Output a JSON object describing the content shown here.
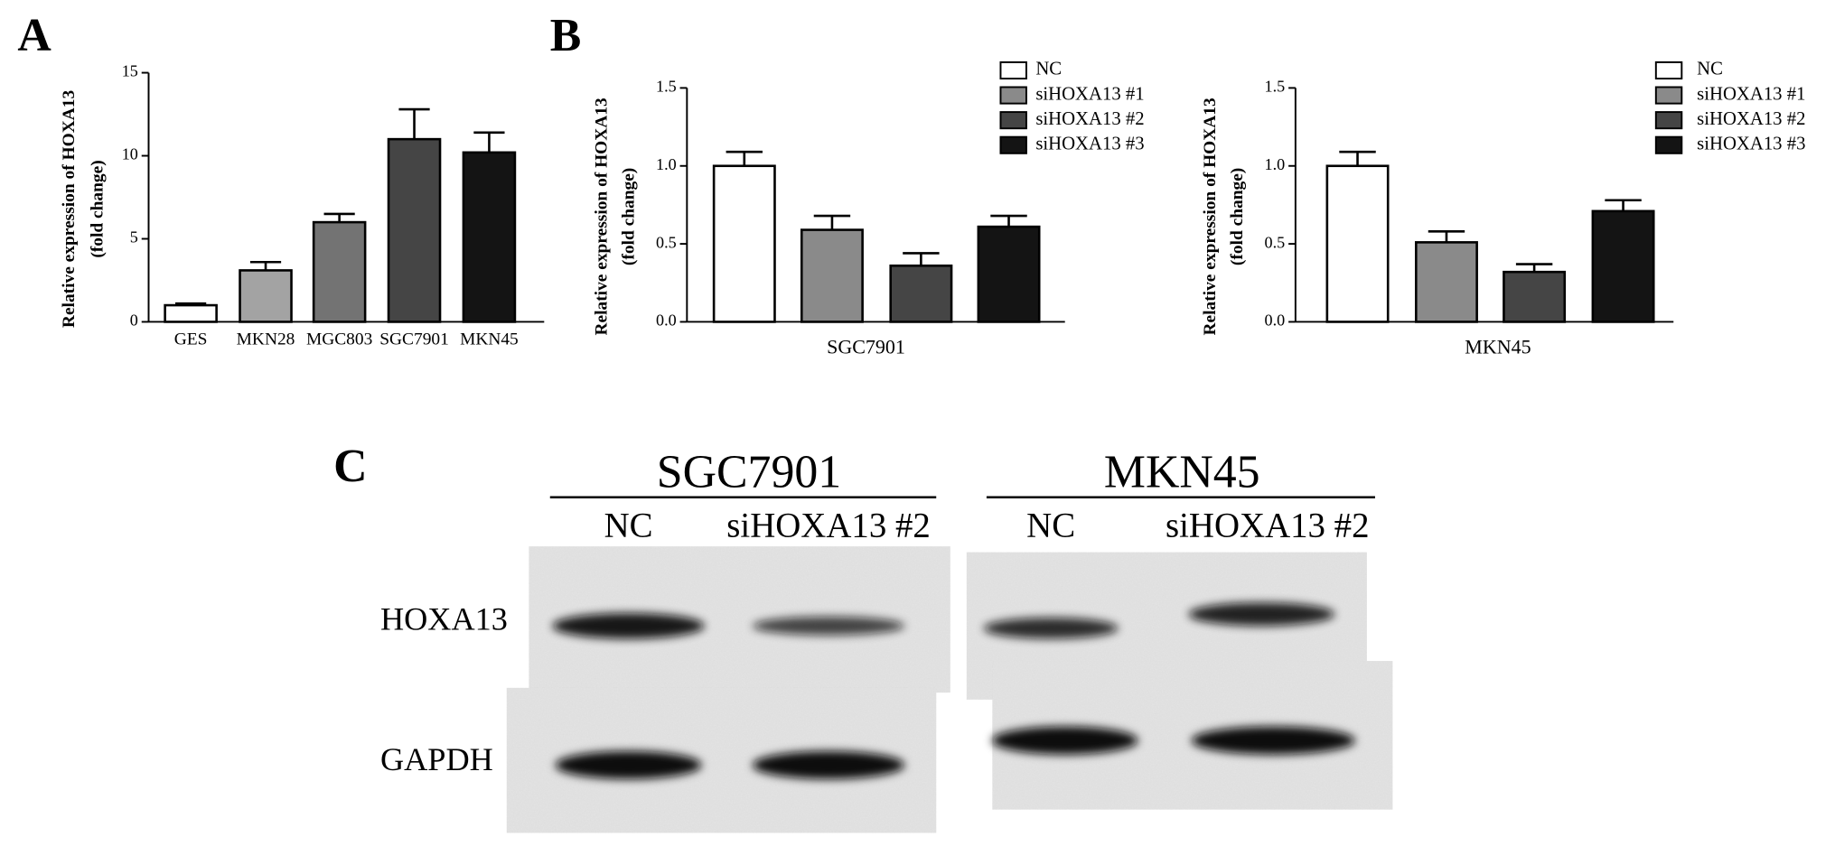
{
  "chart_data": [
    {
      "type": "bar",
      "panel": "A",
      "y_label": [
        "Relative expression of HOXA13",
        "(fold change)"
      ],
      "categories": [
        "GES",
        "MKN28",
        "MGC803",
        "SGC7901",
        "MKN45"
      ],
      "values": [
        1.0,
        3.1,
        6.0,
        11.0,
        10.2
      ],
      "errors": [
        0.1,
        0.5,
        0.5,
        1.8,
        1.2
      ],
      "colors": [
        "#ffffff",
        "#a3a3a3",
        "#737373",
        "#454545",
        "#141414"
      ],
      "ylim": [
        0,
        15
      ],
      "yticks": [
        0,
        5,
        10,
        15
      ]
    },
    {
      "type": "bar",
      "panel": "B",
      "y_label": [
        "Relative expression of HOXA13",
        "(fold change)"
      ],
      "x_label": "SGC7901",
      "series": [
        {
          "name": "NC",
          "color": "#ffffff",
          "values": [
            1.0
          ],
          "errors": [
            0.09
          ]
        },
        {
          "name": "siHOXA13 #1",
          "color": "#8a8a8a",
          "values": [
            0.59
          ],
          "errors": [
            0.09
          ]
        },
        {
          "name": "siHOXA13 #2",
          "color": "#454545",
          "values": [
            0.36
          ],
          "errors": [
            0.08
          ]
        },
        {
          "name": "siHOXA13 #3",
          "color": "#141414",
          "values": [
            0.61
          ],
          "errors": [
            0.07
          ]
        }
      ],
      "ylim": [
        0,
        1.5
      ],
      "yticks": [
        {
          "value": 0,
          "label": "0.0"
        },
        0.5,
        {
          "value": 1,
          "label": "1.0"
        },
        1.5
      ]
    },
    {
      "type": "bar",
      "y_label": [
        "Relative expression of HOXA13",
        "(fold change)"
      ],
      "x_label": "MKN45",
      "series": [
        {
          "name": "NC",
          "color": "#ffffff",
          "values": [
            1.0
          ],
          "errors": [
            0.09
          ]
        },
        {
          "name": "siHOXA13 #1",
          "color": "#8a8a8a",
          "values": [
            0.51
          ],
          "errors": [
            0.07
          ]
        },
        {
          "name": "siHOXA13 #2",
          "color": "#454545",
          "values": [
            0.32
          ],
          "errors": [
            0.05
          ]
        },
        {
          "name": "siHOXA13 #3",
          "color": "#141414",
          "values": [
            0.71
          ],
          "errors": [
            0.07
          ]
        }
      ],
      "ylim": [
        0,
        1.5
      ],
      "yticks": [
        {
          "value": 0,
          "label": "0.0"
        },
        0.5,
        {
          "value": 1,
          "label": "1.0"
        },
        1.5
      ]
    }
  ],
  "blot": {
    "panel": "C",
    "groups": [
      {
        "label": "SGC7901",
        "lanes": [
          "NC",
          "siHOXA13 #2"
        ]
      },
      {
        "label": "MKN45",
        "lanes": [
          "NC",
          "siHOXA13 #2"
        ]
      }
    ],
    "rows": [
      "HOXA13",
      "GAPDH"
    ]
  }
}
